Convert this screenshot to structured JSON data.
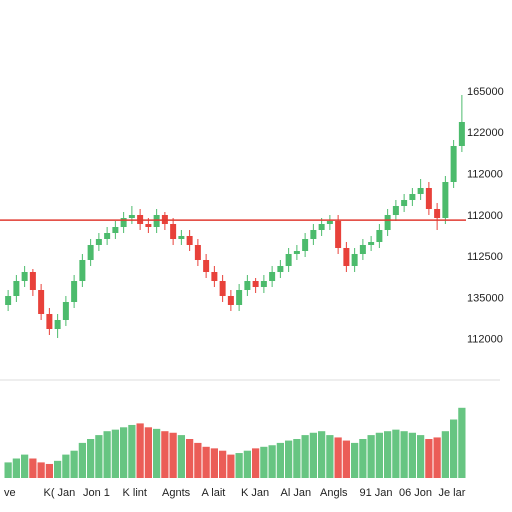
{
  "chart_data": {
    "type": "candlestick",
    "y_axis_labels": [
      "165000",
      "122000",
      "112000",
      "112000",
      "112500",
      "135000",
      "112000"
    ],
    "x_axis_labels": [
      "ve",
      "K( Jan",
      "Jon 1",
      "K lint",
      "Agnts",
      "A lait",
      "K Jan",
      "Al Jan",
      "Angls",
      "91 Jan",
      "06 Jon",
      "Je lar"
    ],
    "ylim": [
      0,
      100
    ],
    "volume_ylim": [
      0,
      100
    ],
    "up_color": "#4cbb6c",
    "down_color": "#e8413a",
    "reference_line": 53.3,
    "reference_color": "#e03a30",
    "open": [
      25,
      28,
      33,
      36,
      30,
      22,
      17,
      20,
      26,
      33,
      40,
      45,
      47,
      49,
      51,
      54,
      55,
      52,
      51,
      55,
      52,
      47,
      48,
      45,
      40,
      36,
      33,
      28,
      25,
      30,
      33,
      31,
      33,
      36,
      38,
      42,
      43,
      47,
      50,
      52,
      53,
      44,
      38,
      42,
      45,
      46,
      50,
      55,
      58,
      60,
      62,
      64,
      57,
      54,
      66,
      78
    ],
    "high": [
      30,
      35,
      38,
      37,
      32,
      24,
      22,
      28,
      35,
      42,
      47,
      49,
      51,
      53,
      56,
      58,
      57,
      54,
      57,
      56,
      54,
      50,
      50,
      47,
      42,
      38,
      35,
      30,
      32,
      35,
      34,
      35,
      38,
      40,
      44,
      45,
      49,
      52,
      54,
      55,
      55,
      46,
      44,
      47,
      48,
      52,
      57,
      60,
      62,
      64,
      67,
      66,
      59,
      68,
      80,
      95
    ],
    "low": [
      23,
      26,
      31,
      28,
      20,
      15,
      14,
      18,
      24,
      31,
      38,
      43,
      45,
      47,
      49,
      52,
      50,
      49,
      49,
      50,
      45,
      45,
      43,
      38,
      34,
      31,
      26,
      23,
      23,
      28,
      29,
      29,
      31,
      34,
      36,
      40,
      41,
      45,
      48,
      50,
      42,
      36,
      36,
      40,
      43,
      44,
      48,
      53,
      56,
      58,
      60,
      55,
      50,
      52,
      64,
      76
    ],
    "close": [
      28,
      33,
      36,
      30,
      22,
      17,
      20,
      26,
      33,
      40,
      45,
      47,
      49,
      51,
      54,
      55,
      52,
      51,
      55,
      52,
      47,
      48,
      45,
      40,
      36,
      33,
      28,
      25,
      30,
      33,
      31,
      33,
      36,
      38,
      42,
      43,
      47,
      50,
      52,
      53,
      44,
      38,
      42,
      45,
      46,
      50,
      55,
      58,
      60,
      62,
      64,
      57,
      54,
      66,
      78,
      86
    ],
    "volume": [
      20,
      25,
      30,
      25,
      20,
      18,
      22,
      30,
      35,
      45,
      50,
      55,
      60,
      62,
      65,
      68,
      70,
      65,
      63,
      60,
      58,
      55,
      50,
      45,
      40,
      38,
      35,
      30,
      32,
      35,
      38,
      40,
      42,
      45,
      48,
      50,
      55,
      58,
      60,
      55,
      52,
      48,
      45,
      50,
      55,
      58,
      60,
      62,
      60,
      58,
      55,
      50,
      52,
      60,
      75,
      90
    ]
  }
}
